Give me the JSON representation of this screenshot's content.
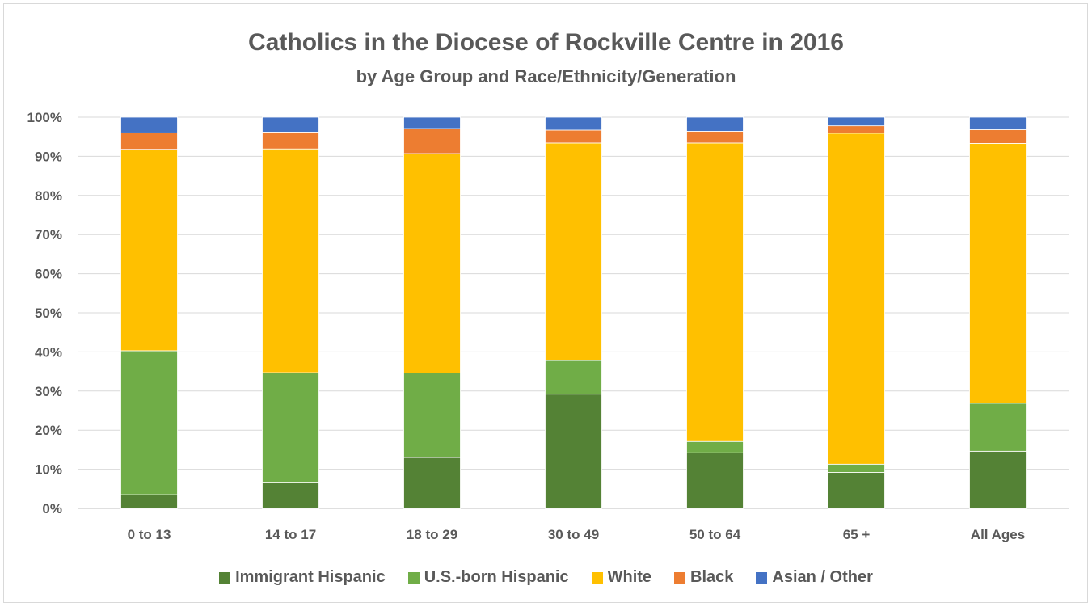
{
  "chart_data": {
    "type": "bar",
    "stacked": true,
    "title": "Catholics in the Diocese of Rockville Centre in 2016",
    "subtitle": "by Age Group and Race/Ethnicity/Generation",
    "categories": [
      "0 to 13",
      "14 to 17",
      "18 to 29",
      "30 to 49",
      "50 to 64",
      "65 +",
      "All Ages"
    ],
    "ylim": [
      0,
      100
    ],
    "yticks": [
      "0%",
      "10%",
      "20%",
      "30%",
      "40%",
      "50%",
      "60%",
      "70%",
      "80%",
      "90%",
      "100%"
    ],
    "grid": true,
    "legend_position": "bottom",
    "series": [
      {
        "name": "Immigrant Hispanic",
        "color": "#548235",
        "values": [
          3.5,
          6.7,
          13.0,
          29.2,
          14.2,
          9.2,
          14.6
        ]
      },
      {
        "name": "U.S.-born Hispanic",
        "color": "#70ad47",
        "values": [
          36.8,
          28.0,
          21.6,
          8.6,
          2.9,
          2.1,
          12.3
        ]
      },
      {
        "name": "White",
        "color": "#ffc000",
        "values": [
          51.5,
          57.2,
          56.1,
          55.6,
          76.3,
          84.6,
          66.4
        ]
      },
      {
        "name": "Black",
        "color": "#ed7d31",
        "values": [
          4.2,
          4.3,
          6.4,
          3.3,
          3.0,
          1.9,
          3.5
        ]
      },
      {
        "name": "Asian / Other",
        "color": "#4472c4",
        "values": [
          4.0,
          3.8,
          2.9,
          3.3,
          3.6,
          2.2,
          3.2
        ]
      }
    ]
  }
}
